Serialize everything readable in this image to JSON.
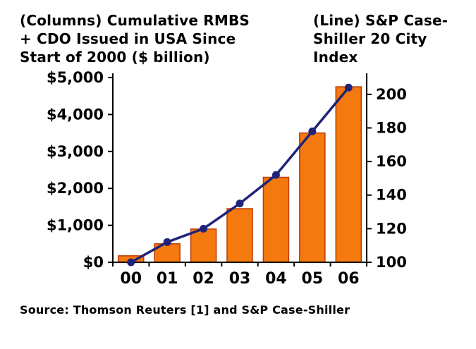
{
  "header": {
    "left_title": "(Columns) Cumulative RMBS\n+ CDO Issued in USA Since\nStart of 2000 ($ billion)",
    "right_title": "(Line) S&P Case-\nShiller 20 City\nIndex"
  },
  "footer": {
    "source": "Source: Thomson Reuters [1] and S&P Case-Shiller"
  },
  "chart_data": {
    "type": "combo",
    "title_columns": "(Columns) Cumulative RMBS + CDO Issued in USA Since Start of 2000 ($ billion)",
    "title_line": "(Line) S&P Case-Shiller 20 City Index",
    "categories": [
      "00",
      "01",
      "02",
      "03",
      "04",
      "05",
      "06"
    ],
    "series": [
      {
        "name": "Cumulative RMBS + CDO Issued in USA ($ billion)",
        "type": "bar",
        "axis": "left",
        "values": [
          175,
          500,
          900,
          1450,
          2300,
          3500,
          4750
        ],
        "color": "#F4790F",
        "border_color": "#C03A00"
      },
      {
        "name": "S&P Case-Shiller 20 City Index",
        "type": "line",
        "axis": "right",
        "values": [
          100,
          112,
          120,
          135,
          152,
          178,
          204
        ],
        "color": "#1F2478"
      }
    ],
    "left_axis": {
      "min": 0,
      "max": 5000,
      "tick_values": [
        0,
        1000,
        2000,
        3000,
        4000,
        5000
      ],
      "tick_labels": [
        "$0",
        "$1,000",
        "$2,000",
        "$3,000",
        "$4,000",
        "$5,000"
      ]
    },
    "right_axis": {
      "min": 100,
      "max": 200,
      "plot_max": 210,
      "tick_values": [
        100,
        120,
        140,
        160,
        180,
        200
      ],
      "tick_labels": [
        "100",
        "120",
        "140",
        "160",
        "180",
        "200"
      ]
    },
    "grid": false,
    "legend": "none (labels in header)",
    "axis_color": "#000000"
  }
}
